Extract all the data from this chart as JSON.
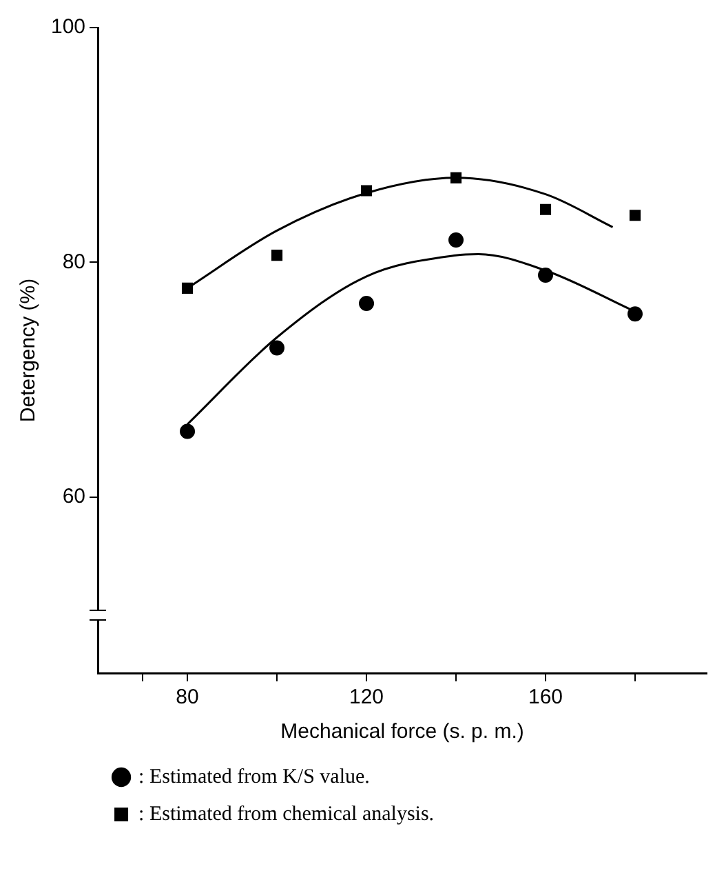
{
  "chart_data": {
    "type": "scatter",
    "xlabel": "Mechanical force (s. p. m.)",
    "ylabel": "Detergency (%)",
    "xlim": [
      60,
      196
    ],
    "ylim": [
      45,
      100
    ],
    "xticks": [
      {
        "value": 70,
        "label": null
      },
      80,
      {
        "value": 100,
        "label": null
      },
      120,
      {
        "value": 140,
        "label": null
      },
      160,
      {
        "value": 180,
        "label": null
      }
    ],
    "yticks": [
      60,
      80,
      100
    ],
    "grid": false,
    "legend": "bottom",
    "series": [
      {
        "name": ": Estimated from K/S value.",
        "color": "#000000",
        "marker": "circle",
        "x": [
          80,
          100,
          120,
          140,
          160,
          180
        ],
        "values": [
          65.6,
          72.7,
          76.5,
          81.9,
          78.9,
          75.6
        ]
      },
      {
        "name": ": Estimated from chemical analysis.",
        "color": "#000000",
        "marker": "square",
        "x": [
          80,
          100,
          120,
          140,
          160,
          180
        ],
        "values": [
          77.8,
          80.6,
          86.1,
          87.2,
          84.5,
          84.0
        ]
      },
      {
        "type": "line",
        "color": "#000000",
        "marker": "none",
        "x": [
          80,
          100,
          120,
          140,
          145,
          160,
          180
        ],
        "values": [
          66.2,
          73.6,
          78.8,
          80.6,
          80.7,
          79.3,
          75.8
        ]
      },
      {
        "type": "line",
        "color": "#000000",
        "marker": "none",
        "x": [
          80,
          100,
          120,
          140,
          160,
          175
        ],
        "values": [
          77.8,
          82.7,
          85.9,
          87.2,
          85.8,
          83.0
        ]
      }
    ]
  }
}
